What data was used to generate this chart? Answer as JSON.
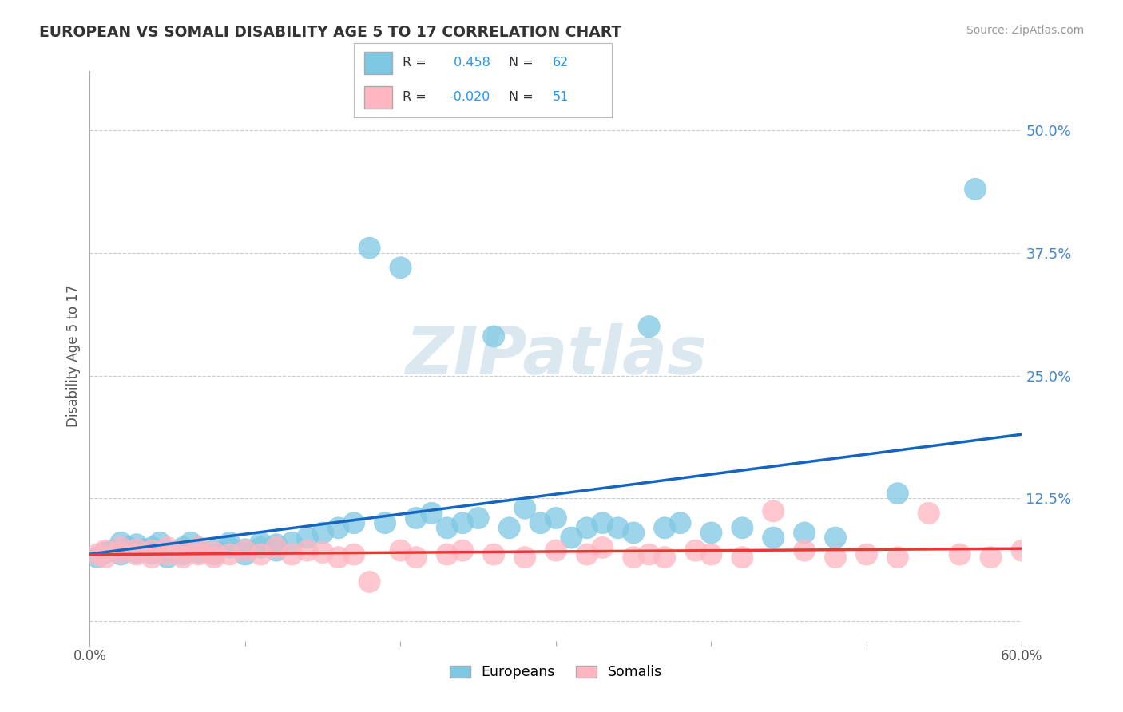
{
  "title": "EUROPEAN VS SOMALI DISABILITY AGE 5 TO 17 CORRELATION CHART",
  "source": "Source: ZipAtlas.com",
  "ylabel": "Disability Age 5 to 17",
  "xlim": [
    0.0,
    0.6
  ],
  "ylim": [
    -0.02,
    0.56
  ],
  "yticks": [
    0.0,
    0.125,
    0.25,
    0.375,
    0.5
  ],
  "ytick_labels": [
    "",
    "12.5%",
    "25.0%",
    "37.5%",
    "50.0%"
  ],
  "xtick_positions": [
    0.0,
    0.1,
    0.2,
    0.3,
    0.4,
    0.5,
    0.6
  ],
  "xtick_labels": [
    "0.0%",
    "",
    "",
    "",
    "",
    "",
    "60.0%"
  ],
  "european_R": 0.458,
  "european_N": 62,
  "somali_R": -0.02,
  "somali_N": 51,
  "european_color": "#7ec8e3",
  "somali_color": "#ffb6c1",
  "trendline_european_color": "#1565C0",
  "trendline_somali_color": "#e53935",
  "background_color": "#ffffff",
  "grid_color": "#cccccc",
  "watermark_color": "#dce8f0",
  "legend_european_label": "Europeans",
  "legend_somali_label": "Somalis",
  "eu_x": [
    0.005,
    0.01,
    0.015,
    0.02,
    0.025,
    0.02,
    0.03,
    0.035,
    0.03,
    0.04,
    0.04,
    0.045,
    0.05,
    0.05,
    0.06,
    0.06,
    0.065,
    0.07,
    0.07,
    0.08,
    0.08,
    0.09,
    0.09,
    0.1,
    0.1,
    0.11,
    0.11,
    0.12,
    0.12,
    0.13,
    0.14,
    0.15,
    0.16,
    0.17,
    0.18,
    0.19,
    0.2,
    0.21,
    0.22,
    0.23,
    0.24,
    0.25,
    0.26,
    0.27,
    0.28,
    0.29,
    0.3,
    0.31,
    0.32,
    0.33,
    0.34,
    0.35,
    0.36,
    0.37,
    0.38,
    0.4,
    0.42,
    0.44,
    0.46,
    0.48,
    0.52,
    0.57
  ],
  "eu_y": [
    0.065,
    0.07,
    0.072,
    0.068,
    0.075,
    0.08,
    0.07,
    0.073,
    0.078,
    0.069,
    0.075,
    0.08,
    0.065,
    0.072,
    0.068,
    0.075,
    0.08,
    0.07,
    0.075,
    0.068,
    0.072,
    0.08,
    0.075,
    0.073,
    0.068,
    0.075,
    0.08,
    0.072,
    0.078,
    0.08,
    0.085,
    0.09,
    0.095,
    0.1,
    0.38,
    0.1,
    0.36,
    0.105,
    0.11,
    0.095,
    0.1,
    0.105,
    0.29,
    0.095,
    0.115,
    0.1,
    0.105,
    0.085,
    0.095,
    0.1,
    0.095,
    0.09,
    0.3,
    0.095,
    0.1,
    0.09,
    0.095,
    0.085,
    0.09,
    0.085,
    0.13,
    0.44
  ],
  "so_x": [
    0.005,
    0.01,
    0.01,
    0.02,
    0.02,
    0.03,
    0.03,
    0.04,
    0.04,
    0.05,
    0.05,
    0.06,
    0.06,
    0.07,
    0.07,
    0.08,
    0.08,
    0.09,
    0.1,
    0.11,
    0.12,
    0.13,
    0.14,
    0.15,
    0.16,
    0.17,
    0.18,
    0.2,
    0.21,
    0.23,
    0.24,
    0.26,
    0.28,
    0.3,
    0.32,
    0.33,
    0.35,
    0.36,
    0.37,
    0.39,
    0.4,
    0.42,
    0.44,
    0.46,
    0.48,
    0.5,
    0.52,
    0.54,
    0.56,
    0.58,
    0.6
  ],
  "so_y": [
    0.068,
    0.072,
    0.065,
    0.07,
    0.075,
    0.068,
    0.073,
    0.065,
    0.072,
    0.068,
    0.075,
    0.065,
    0.072,
    0.068,
    0.075,
    0.065,
    0.07,
    0.068,
    0.072,
    0.068,
    0.075,
    0.068,
    0.072,
    0.07,
    0.065,
    0.068,
    0.04,
    0.072,
    0.065,
    0.068,
    0.072,
    0.068,
    0.065,
    0.072,
    0.068,
    0.075,
    0.065,
    0.068,
    0.065,
    0.072,
    0.068,
    0.065,
    0.112,
    0.072,
    0.065,
    0.068,
    0.065,
    0.11,
    0.068,
    0.065,
    0.072
  ]
}
